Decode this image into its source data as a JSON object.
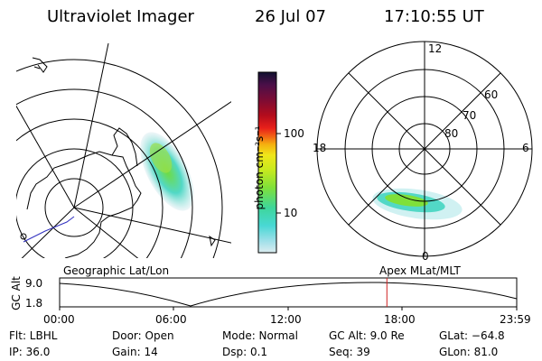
{
  "header": {
    "instrument": "Ultraviolet Imager",
    "date": "26 Jul 07",
    "time": "17:10:55 UT"
  },
  "colorbar": {
    "unit_label": "photon cm⁻²s⁻¹",
    "tick_labels": [
      "100",
      "10"
    ],
    "colors": [
      "#101030",
      "#4b0f48",
      "#7a0c35",
      "#b40c1c",
      "#e8201a",
      "#f26a14",
      "#f5b00f",
      "#f0e61a",
      "#c8ea1e",
      "#7fe03a",
      "#3ed69a",
      "#48d8d4",
      "#9adfe8",
      "#dcecf0"
    ]
  },
  "polar_plot": {
    "mlt_labels": {
      "top": "12",
      "left": "18",
      "right": "6",
      "bottom": "0"
    },
    "lat_labels": [
      "60",
      "70",
      "80"
    ]
  },
  "map_labels": {
    "left_panel": "Geographic Lat/Lon",
    "right_panel": "Apex MLat/MLT"
  },
  "altitude_plot": {
    "y_axis_label": "GC Alt",
    "y_ticks": [
      "9.0",
      "1.8"
    ],
    "x_ticks": [
      "00:00",
      "06:00",
      "12:00",
      "18:00",
      "23:59"
    ],
    "marker_time_fraction": 0.716
  },
  "footer": {
    "filter": "Flt: LBHL",
    "ip": "IP: 36.0",
    "door": "Door: Open",
    "gain": "Gain: 14",
    "mode": "Mode: Normal",
    "dsp": "Dsp:    0.1",
    "gc_alt": "GC Alt: 9.0 Re",
    "seq": "Seq: 39",
    "glat": "GLat: −64.8",
    "glon": "GLon:  81.0"
  },
  "colors": {
    "marker": "#d02020",
    "aurora_outer": "#e4f0f4",
    "aurora_mid": "#52d8c6",
    "aurora_core": "#6fdc3c"
  }
}
